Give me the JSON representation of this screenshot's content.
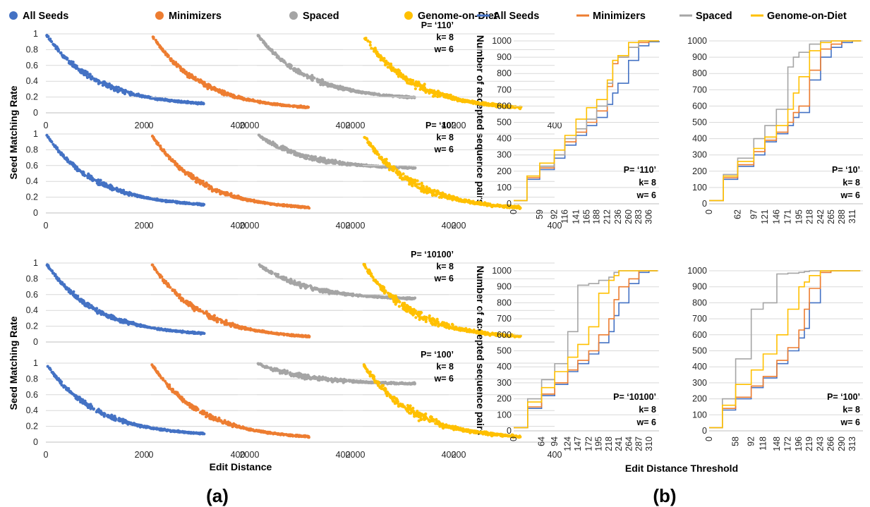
{
  "colors": {
    "all_seeds": "#4472C4",
    "minimizers": "#ED7D31",
    "spaced": "#A5A5A5",
    "genome_on_diet": "#FFC000",
    "grid": "#D9D9D9",
    "axis": "#BFBFBF"
  },
  "legend": [
    "All Seeds",
    "Minimizers",
    "Spaced",
    "Genome-on-Diet"
  ],
  "panel_labels": {
    "a": "(a)",
    "b": "(b)"
  },
  "axis_titles": {
    "a_y": "Seed Matching Rate",
    "a_x": "Edit Distance",
    "b_y": "Number of accepted sequence pairs",
    "b_x": "Edit Distance Threshold"
  },
  "chart_data": [
    {
      "panel": "(a)",
      "type": "scatter",
      "series_names": [
        "All Seeds",
        "Minimizers",
        "Spaced",
        "Genome-on-Diet"
      ],
      "xlabel": "Edit Distance",
      "ylabel": "Seed Matching Rate",
      "xlim": [
        0,
        400
      ],
      "ylim": [
        0,
        1
      ],
      "xticks": [
        "0",
        "200",
        "400"
      ],
      "yticks": [
        "0",
        "0.2",
        "0.4",
        "0.6",
        "0.8",
        "1"
      ],
      "grid": "horizontal",
      "x_range_of_points": [
        0,
        330
      ],
      "rows": [
        {
          "annotation": {
            "p": "P= ‘110’",
            "k": "k= 8",
            "w": "w= 6"
          },
          "decay": [
            {
              "series": "All Seeds",
              "start": 1.0,
              "end": 0.08
            },
            {
              "series": "Minimizers",
              "start": 1.0,
              "end": 0.03
            },
            {
              "series": "Spaced",
              "start": 1.0,
              "end": 0.16
            },
            {
              "series": "Genome-on-Diet",
              "start": 1.0,
              "end": 0.03
            }
          ]
        },
        {
          "annotation": {
            "p": "P= ‘10’",
            "k": "k= 8",
            "w": "w= 6"
          },
          "decay": [
            {
              "series": "All Seeds",
              "start": 1.0,
              "end": 0.07
            },
            {
              "series": "Minimizers",
              "start": 1.0,
              "end": 0.03
            },
            {
              "series": "Spaced",
              "start": 1.0,
              "end": 0.55
            },
            {
              "series": "Genome-on-Diet",
              "start": 1.0,
              "end": 0.03
            }
          ]
        },
        {
          "annotation": {
            "p": "P= ‘10100’",
            "k": "k= 8",
            "w": "w= 6"
          },
          "decay": [
            {
              "series": "All Seeds",
              "start": 1.0,
              "end": 0.07
            },
            {
              "series": "Minimizers",
              "start": 1.0,
              "end": 0.03
            },
            {
              "series": "Spaced",
              "start": 1.0,
              "end": 0.53
            },
            {
              "series": "Genome-on-Diet",
              "start": 1.0,
              "end": 0.03
            }
          ]
        },
        {
          "annotation": {
            "p": "P= ‘100’",
            "k": "k= 8",
            "w": "w= 6"
          },
          "decay": [
            {
              "series": "All Seeds",
              "start": 1.0,
              "end": 0.07
            },
            {
              "series": "Minimizers",
              "start": 1.0,
              "end": 0.03
            },
            {
              "series": "Spaced",
              "start": 1.0,
              "end": 0.73
            },
            {
              "series": "Genome-on-Diet",
              "start": 1.0,
              "end": 0.03
            }
          ]
        }
      ]
    },
    {
      "panel": "(b)",
      "type": "line",
      "xlabel": "Edit Distance Threshold",
      "ylabel": "Number of accepted sequence pairs",
      "ylim": [
        0,
        1000
      ],
      "yticks": [
        "0",
        "100",
        "200",
        "300",
        "400",
        "500",
        "600",
        "700",
        "800",
        "900",
        "1000"
      ],
      "grid": "horizontal",
      "plots": [
        {
          "annotation": {
            "p": "P= ‘110’",
            "k": "k= 8",
            "w": "w= 6"
          },
          "xticks": [
            "0",
            "59",
            "92",
            "116",
            "141",
            "165",
            "188",
            "212",
            "236",
            "260",
            "283",
            "306"
          ],
          "series": [
            {
              "name": "All Seeds",
              "x": [
                0,
                30,
                59,
                92,
                116,
                141,
                165,
                188,
                212,
                224,
                236,
                260,
                283,
                306,
                330
              ],
              "y": [
                20,
                150,
                210,
                280,
                360,
                420,
                480,
                530,
                610,
                680,
                740,
                880,
                970,
                995,
                1000
              ]
            },
            {
              "name": "Minimizers",
              "x": [
                0,
                30,
                59,
                92,
                116,
                141,
                165,
                188,
                212,
                224,
                236,
                260,
                283,
                306,
                330
              ],
              "y": [
                20,
                160,
                220,
                300,
                380,
                440,
                500,
                570,
                720,
                860,
                900,
                960,
                990,
                1000,
                1000
              ]
            },
            {
              "name": "Spaced",
              "x": [
                0,
                30,
                59,
                92,
                116,
                141,
                165,
                188,
                212,
                224,
                236,
                260,
                283,
                306,
                330
              ],
              "y": [
                20,
                170,
                230,
                300,
                400,
                460,
                520,
                600,
                740,
                880,
                900,
                960,
                1000,
                1000,
                1000
              ]
            },
            {
              "name": "Genome-on-Diet",
              "x": [
                0,
                30,
                59,
                92,
                116,
                141,
                165,
                188,
                212,
                224,
                236,
                260,
                283,
                306,
                330
              ],
              "y": [
                20,
                170,
                250,
                330,
                420,
                520,
                590,
                640,
                760,
                880,
                910,
                990,
                1000,
                1000,
                1000
              ]
            }
          ]
        },
        {
          "annotation": {
            "p": "P= ‘10’",
            "k": "k= 8",
            "w": "w= 6"
          },
          "xticks": [
            "0",
            "62",
            "97",
            "121",
            "146",
            "171",
            "195",
            "218",
            "242",
            "265",
            "288",
            "311"
          ],
          "series": [
            {
              "name": "All Seeds",
              "x": [
                0,
                31,
                62,
                97,
                121,
                146,
                171,
                183,
                195,
                218,
                242,
                265,
                288,
                311,
                330
              ],
              "y": [
                20,
                150,
                230,
                300,
                380,
                430,
                480,
                530,
                560,
                760,
                900,
                960,
                990,
                1000,
                1000
              ]
            },
            {
              "name": "Minimizers",
              "x": [
                0,
                31,
                62,
                97,
                121,
                146,
                171,
                183,
                195,
                218,
                242,
                265,
                288,
                311,
                330
              ],
              "y": [
                20,
                160,
                240,
                320,
                390,
                440,
                500,
                560,
                600,
                820,
                950,
                980,
                1000,
                1000,
                1000
              ]
            },
            {
              "name": "Spaced",
              "x": [
                0,
                31,
                62,
                97,
                121,
                146,
                171,
                183,
                195,
                218,
                242,
                265,
                288,
                311,
                330
              ],
              "y": [
                20,
                180,
                280,
                400,
                480,
                580,
                840,
                900,
                930,
                980,
                1000,
                1000,
                1000,
                1000,
                1000
              ]
            },
            {
              "name": "Genome-on-Diet",
              "x": [
                0,
                31,
                62,
                97,
                121,
                146,
                171,
                183,
                195,
                218,
                242,
                265,
                288,
                311,
                330
              ],
              "y": [
                20,
                170,
                260,
                340,
                410,
                480,
                580,
                680,
                780,
                940,
                990,
                1000,
                1000,
                1000,
                1000
              ]
            }
          ]
        },
        {
          "annotation": {
            "p": "P= ‘10100’",
            "k": "k= 8",
            "w": "w= 6"
          },
          "xticks": [
            "0",
            "64",
            "94",
            "124",
            "147",
            "172",
            "195",
            "218",
            "241",
            "264",
            "287",
            "310"
          ],
          "series": [
            {
              "name": "All Seeds",
              "x": [
                0,
                32,
                64,
                94,
                124,
                147,
                172,
                195,
                218,
                230,
                241,
                264,
                287,
                310,
                330
              ],
              "y": [
                20,
                140,
                220,
                290,
                370,
                420,
                480,
                550,
                620,
                720,
                800,
                920,
                990,
                1000,
                1000
              ]
            },
            {
              "name": "Minimizers",
              "x": [
                0,
                32,
                64,
                94,
                124,
                147,
                172,
                195,
                218,
                230,
                241,
                264,
                287,
                310,
                330
              ],
              "y": [
                20,
                150,
                230,
                300,
                380,
                440,
                500,
                600,
                700,
                820,
                900,
                950,
                1000,
                1000,
                1000
              ]
            },
            {
              "name": "Spaced",
              "x": [
                0,
                32,
                64,
                94,
                124,
                147,
                172,
                195,
                218,
                230,
                241,
                264,
                287,
                310,
                330
              ],
              "y": [
                20,
                200,
                320,
                420,
                620,
                910,
                920,
                940,
                960,
                990,
                1000,
                1000,
                1000,
                1000,
                1000
              ]
            },
            {
              "name": "Genome-on-Diet",
              "x": [
                0,
                32,
                64,
                94,
                124,
                147,
                172,
                195,
                218,
                230,
                241,
                264,
                287,
                310,
                330
              ],
              "y": [
                20,
                180,
                270,
                370,
                460,
                540,
                650,
                860,
                940,
                970,
                1000,
                1000,
                1000,
                1000,
                1000
              ]
            }
          ]
        },
        {
          "annotation": {
            "p": "P= ‘100’",
            "k": "k= 8",
            "w": "w= 6"
          },
          "xticks": [
            "0",
            "58",
            "92",
            "118",
            "148",
            "172",
            "196",
            "219",
            "243",
            "266",
            "290",
            "313"
          ],
          "series": [
            {
              "name": "All Seeds",
              "x": [
                0,
                29,
                58,
                92,
                118,
                148,
                172,
                196,
                208,
                219,
                243,
                266,
                290,
                313,
                330
              ],
              "y": [
                20,
                130,
                200,
                270,
                330,
                420,
                500,
                580,
                640,
                800,
                990,
                1000,
                1000,
                1000,
                1000
              ]
            },
            {
              "name": "Minimizers",
              "x": [
                0,
                29,
                58,
                92,
                118,
                148,
                172,
                196,
                208,
                219,
                243,
                266,
                290,
                313,
                330
              ],
              "y": [
                20,
                140,
                210,
                280,
                340,
                440,
                520,
                630,
                760,
                890,
                990,
                1000,
                1000,
                1000,
                1000
              ]
            },
            {
              "name": "Spaced",
              "x": [
                0,
                29,
                58,
                92,
                118,
                148,
                172,
                196,
                208,
                219,
                243,
                266,
                290,
                313,
                330
              ],
              "y": [
                20,
                200,
                450,
                760,
                800,
                980,
                985,
                990,
                995,
                1000,
                1000,
                1000,
                1000,
                1000,
                1000
              ]
            },
            {
              "name": "Genome-on-Diet",
              "x": [
                0,
                29,
                58,
                92,
                118,
                148,
                172,
                196,
                208,
                219,
                243,
                266,
                290,
                313,
                330
              ],
              "y": [
                20,
                160,
                290,
                380,
                480,
                600,
                760,
                900,
                930,
                970,
                1000,
                1000,
                1000,
                1000,
                1000
              ]
            }
          ]
        }
      ]
    }
  ]
}
